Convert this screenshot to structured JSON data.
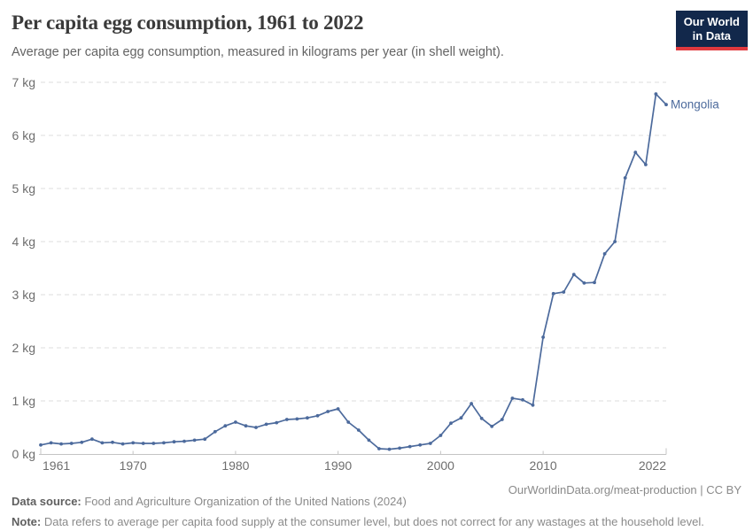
{
  "header": {
    "title": "Per capita egg consumption, 1961 to 2022",
    "subtitle": "Average per capita egg consumption, measured in kilograms per year (in shell weight).",
    "logo": {
      "line1": "Our World",
      "line2": "in Data",
      "bg_color": "#12284B",
      "accent_color": "#E0393E"
    }
  },
  "chart_data": {
    "type": "line",
    "title": "Per capita egg consumption, 1961 to 2022",
    "xlabel": "",
    "ylabel": "",
    "xlim": [
      1961,
      2022
    ],
    "ylim": [
      0,
      7
    ],
    "grid": "horizontal-dashed",
    "legend_position": "end-of-line-label",
    "x_ticks": [
      {
        "value": 1961,
        "label": "1961"
      },
      {
        "value": 1970,
        "label": "1970"
      },
      {
        "value": 1980,
        "label": "1980"
      },
      {
        "value": 1990,
        "label": "1990"
      },
      {
        "value": 2000,
        "label": "2000"
      },
      {
        "value": 2010,
        "label": "2010"
      },
      {
        "value": 2022,
        "label": "2022"
      }
    ],
    "y_ticks": [
      {
        "value": 0,
        "label": "0 kg"
      },
      {
        "value": 1,
        "label": "1 kg"
      },
      {
        "value": 2,
        "label": "2 kg"
      },
      {
        "value": 3,
        "label": "3 kg"
      },
      {
        "value": 4,
        "label": "4 kg"
      },
      {
        "value": 5,
        "label": "5 kg"
      },
      {
        "value": 6,
        "label": "6 kg"
      },
      {
        "value": 7,
        "label": "7 kg"
      }
    ],
    "series": [
      {
        "name": "Mongolia",
        "color": "#4C6A9C",
        "x": [
          1961,
          1962,
          1963,
          1964,
          1965,
          1966,
          1967,
          1968,
          1969,
          1970,
          1971,
          1972,
          1973,
          1974,
          1975,
          1976,
          1977,
          1978,
          1979,
          1980,
          1981,
          1982,
          1983,
          1984,
          1985,
          1986,
          1987,
          1988,
          1989,
          1990,
          1991,
          1992,
          1993,
          1994,
          1995,
          1996,
          1997,
          1998,
          1999,
          2000,
          2001,
          2002,
          2003,
          2004,
          2005,
          2006,
          2007,
          2008,
          2009,
          2010,
          2011,
          2012,
          2013,
          2014,
          2015,
          2016,
          2017,
          2018,
          2019,
          2020,
          2021,
          2022
        ],
        "values": [
          0.17,
          0.21,
          0.19,
          0.2,
          0.22,
          0.28,
          0.21,
          0.22,
          0.19,
          0.21,
          0.2,
          0.2,
          0.21,
          0.23,
          0.24,
          0.26,
          0.28,
          0.42,
          0.53,
          0.6,
          0.53,
          0.5,
          0.56,
          0.59,
          0.65,
          0.66,
          0.68,
          0.72,
          0.8,
          0.85,
          0.6,
          0.45,
          0.26,
          0.1,
          0.09,
          0.11,
          0.14,
          0.17,
          0.2,
          0.35,
          0.58,
          0.68,
          0.95,
          0.67,
          0.52,
          0.65,
          1.05,
          1.02,
          0.92,
          2.2,
          3.02,
          3.05,
          3.38,
          3.22,
          3.23,
          3.77,
          4.0,
          5.2,
          5.68,
          5.45,
          6.78,
          6.58
        ]
      }
    ]
  },
  "footer": {
    "source_label": "Data source:",
    "source_text": " Food and Agriculture Organization of the United Nations (2024)",
    "link": "OurWorldinData.org/meat-production | CC BY",
    "note_label": "Note:",
    "note_text": " Data refers to average per capita food supply at the consumer level, but does not correct for any wastages at the household level."
  }
}
